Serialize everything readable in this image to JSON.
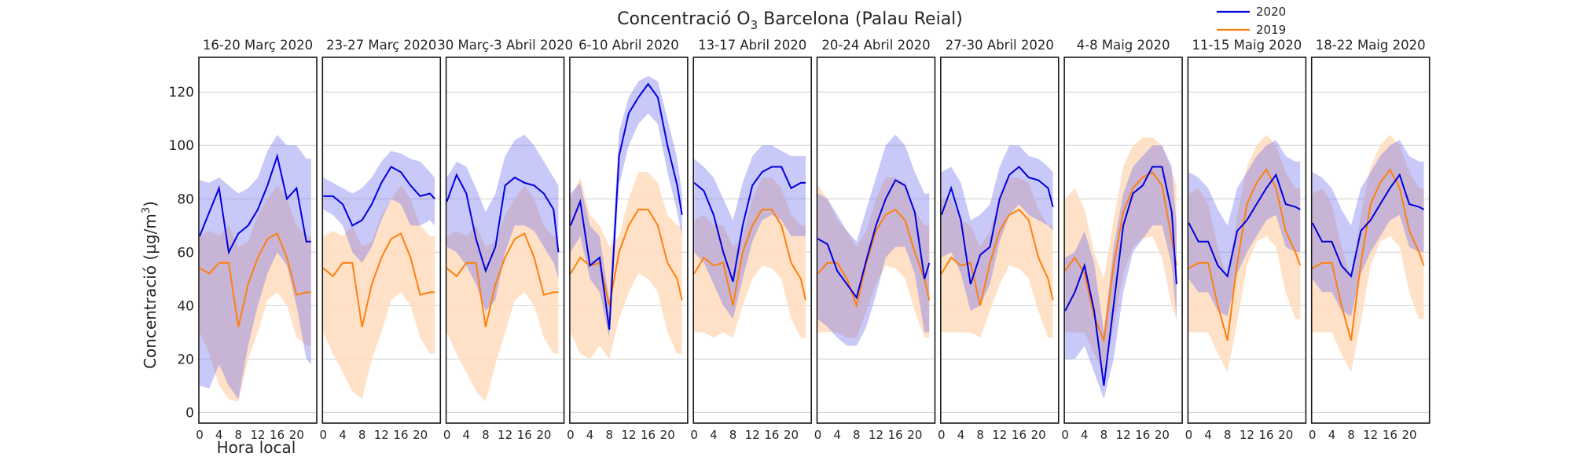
{
  "figure": {
    "title": "Concentració O",
    "title_sub": "3",
    "title_rest": " Barcelona (Palau Reial)",
    "ylabel": "Concentració (µg/m",
    "ylabel_sup": "3",
    "ylabel_end": ")",
    "xlabel": "Hora local"
  },
  "legend": {
    "items": [
      {
        "label": "2020",
        "color": "#0000dd"
      },
      {
        "label": "2019",
        "color": "#ff7f0e"
      }
    ],
    "position": "top-right"
  },
  "chart_data": {
    "type": "line",
    "ylim": [
      -4,
      133
    ],
    "xlim": [
      0,
      24
    ],
    "yticks": [
      0,
      20,
      40,
      60,
      80,
      100,
      120
    ],
    "xticks": [
      0,
      4,
      8,
      12,
      16,
      20
    ],
    "grid": "horizontal",
    "band_colors": {
      "2020": "#c3c5f5",
      "2019": "#ffdcbd",
      "overlap": "#c8a8c9"
    },
    "x": [
      0,
      2,
      4,
      6,
      8,
      10,
      12,
      14,
      16,
      18,
      20,
      22,
      23
    ],
    "panels": [
      {
        "title": "16-20 Març 2020",
        "series2020": [
          66,
          75,
          84,
          60,
          67,
          70,
          76,
          85,
          96,
          80,
          84,
          64,
          64
        ],
        "band2020_low": [
          10,
          9,
          18,
          10,
          5,
          25,
          40,
          52,
          60,
          55,
          40,
          20,
          18
        ],
        "band2020_high": [
          87,
          86,
          88,
          85,
          82,
          84,
          88,
          98,
          104,
          100,
          100,
          95,
          95
        ],
        "series2019": [
          54,
          52,
          56,
          56,
          32,
          48,
          58,
          65,
          67,
          58,
          44,
          45,
          45
        ],
        "band2019_low": [
          30,
          22,
          10,
          5,
          4,
          20,
          30,
          42,
          45,
          40,
          28,
          25,
          25
        ],
        "band2019_high": [
          66,
          68,
          66,
          70,
          62,
          64,
          74,
          80,
          85,
          80,
          70,
          66,
          66
        ]
      },
      {
        "title": "23-27 Març 2020",
        "series2020": [
          81,
          81,
          78,
          70,
          72,
          78,
          86,
          92,
          90,
          85,
          81,
          82,
          80
        ],
        "band2020_low": [
          76,
          74,
          70,
          60,
          56,
          62,
          72,
          80,
          78,
          70,
          70,
          72,
          70
        ],
        "band2020_high": [
          88,
          86,
          84,
          82,
          84,
          88,
          94,
          98,
          97,
          95,
          94,
          90,
          88
        ],
        "series2019": [
          54,
          51,
          56,
          56,
          32,
          48,
          58,
          65,
          67,
          58,
          44,
          45,
          45
        ],
        "band2019_low": [
          30,
          22,
          15,
          8,
          5,
          20,
          30,
          42,
          45,
          40,
          28,
          22,
          22
        ],
        "band2019_high": [
          66,
          68,
          66,
          70,
          62,
          64,
          74,
          80,
          85,
          80,
          70,
          66,
          66
        ]
      },
      {
        "title": "30 Març-3 Abril 2020",
        "series2020": [
          79,
          89,
          82,
          65,
          53,
          62,
          85,
          88,
          86,
          85,
          82,
          76,
          60
        ],
        "band2020_low": [
          62,
          60,
          55,
          48,
          38,
          42,
          60,
          70,
          70,
          68,
          62,
          56,
          50
        ],
        "band2020_high": [
          88,
          94,
          92,
          84,
          75,
          82,
          96,
          102,
          104,
          100,
          94,
          88,
          85
        ],
        "series2019": [
          54,
          51,
          56,
          56,
          32,
          48,
          58,
          65,
          67,
          58,
          44,
          45,
          45
        ],
        "band2019_low": [
          30,
          22,
          15,
          8,
          4,
          18,
          30,
          42,
          45,
          40,
          28,
          22,
          22
        ],
        "band2019_high": [
          66,
          68,
          66,
          70,
          62,
          64,
          74,
          80,
          85,
          80,
          70,
          66,
          66
        ]
      },
      {
        "title": "6-10 Abril 2020",
        "series2020": [
          70,
          79,
          55,
          58,
          31,
          96,
          112,
          118,
          123,
          118,
          100,
          85,
          74
        ],
        "band2020_low": [
          60,
          66,
          50,
          45,
          28,
          85,
          100,
          108,
          112,
          108,
          90,
          75,
          66
        ],
        "band2020_high": [
          82,
          86,
          70,
          66,
          42,
          105,
          118,
          124,
          126,
          124,
          110,
          95,
          82
        ],
        "series2019": [
          52,
          58,
          55,
          56,
          40,
          60,
          70,
          76,
          76,
          70,
          56,
          50,
          42
        ],
        "band2019_low": [
          30,
          22,
          20,
          25,
          20,
          35,
          45,
          52,
          50,
          45,
          30,
          22,
          22
        ],
        "band2019_high": [
          80,
          88,
          74,
          70,
          62,
          66,
          80,
          90,
          90,
          86,
          74,
          70,
          70
        ]
      },
      {
        "title": "13-17 Abril 2020",
        "series2020": [
          86,
          83,
          74,
          60,
          49,
          70,
          85,
          90,
          92,
          92,
          84,
          86,
          86
        ],
        "band2020_low": [
          60,
          56,
          48,
          40,
          35,
          50,
          64,
          72,
          74,
          72,
          66,
          66,
          66
        ],
        "band2020_high": [
          95,
          92,
          88,
          80,
          72,
          86,
          96,
          100,
          100,
          98,
          96,
          96,
          96
        ],
        "series2019": [
          52,
          58,
          55,
          56,
          40,
          60,
          70,
          76,
          76,
          70,
          56,
          50,
          42
        ],
        "band2019_low": [
          30,
          30,
          28,
          30,
          28,
          40,
          50,
          55,
          54,
          50,
          35,
          28,
          28
        ],
        "band2019_high": [
          72,
          74,
          70,
          70,
          62,
          66,
          80,
          88,
          88,
          84,
          74,
          70,
          70
        ]
      },
      {
        "title": "20-24 Abril 2020",
        "series2020": [
          65,
          63,
          53,
          48,
          43,
          57,
          70,
          80,
          87,
          85,
          75,
          50,
          56
        ],
        "band2020_low": [
          35,
          32,
          28,
          25,
          25,
          32,
          44,
          58,
          62,
          62,
          52,
          30,
          30
        ],
        "band2020_high": [
          82,
          80,
          74,
          68,
          64,
          76,
          88,
          100,
          104,
          100,
          90,
          82,
          82
        ],
        "series2019": [
          52,
          56,
          56,
          50,
          40,
          56,
          68,
          74,
          76,
          72,
          60,
          50,
          42
        ],
        "band2019_low": [
          30,
          30,
          30,
          28,
          28,
          38,
          48,
          55,
          54,
          50,
          38,
          28,
          28
        ],
        "band2019_high": [
          85,
          80,
          72,
          68,
          62,
          68,
          80,
          88,
          88,
          86,
          76,
          70,
          70
        ]
      },
      {
        "title": "27-30 Abril 2020",
        "series2020": [
          74,
          84,
          72,
          48,
          59,
          62,
          80,
          89,
          92,
          88,
          87,
          84,
          77
        ],
        "band2020_low": [
          58,
          60,
          52,
          38,
          40,
          48,
          64,
          74,
          78,
          74,
          72,
          70,
          68
        ],
        "band2020_high": [
          90,
          92,
          86,
          72,
          74,
          78,
          92,
          100,
          100,
          96,
          95,
          92,
          90
        ],
        "series2019": [
          52,
          58,
          55,
          56,
          40,
          56,
          68,
          74,
          76,
          72,
          58,
          50,
          42
        ],
        "band2019_low": [
          30,
          30,
          30,
          30,
          28,
          38,
          48,
          55,
          54,
          50,
          38,
          28,
          28
        ],
        "band2019_high": [
          80,
          80,
          72,
          70,
          62,
          68,
          80,
          88,
          88,
          86,
          76,
          70,
          70
        ]
      },
      {
        "title": "4-8 Maig 2020",
        "series2020": [
          38,
          45,
          55,
          38,
          10,
          40,
          70,
          82,
          85,
          92,
          92,
          75,
          48
        ],
        "band2020_low": [
          20,
          20,
          25,
          15,
          5,
          20,
          45,
          60,
          65,
          70,
          70,
          55,
          35
        ],
        "band2020_high": [
          58,
          60,
          68,
          56,
          30,
          62,
          82,
          92,
          96,
          100,
          100,
          92,
          70
        ],
        "series2019": [
          53,
          58,
          52,
          36,
          27,
          55,
          75,
          84,
          88,
          90,
          85,
          65,
          55
        ],
        "band2019_low": [
          30,
          30,
          30,
          22,
          15,
          32,
          52,
          62,
          65,
          66,
          58,
          40,
          35
        ],
        "band2019_high": [
          80,
          84,
          76,
          60,
          50,
          72,
          92,
          100,
          103,
          103,
          100,
          90,
          85
        ]
      },
      {
        "title": "11-15 Maig 2020",
        "series2020": [
          71,
          64,
          64,
          55,
          51,
          68,
          72,
          78,
          84,
          89,
          78,
          77,
          76
        ],
        "band2020_low": [
          50,
          45,
          45,
          38,
          36,
          52,
          60,
          66,
          72,
          74,
          62,
          60,
          60
        ],
        "band2020_high": [
          90,
          88,
          84,
          76,
          70,
          84,
          90,
          96,
          100,
          102,
          96,
          94,
          94
        ],
        "series2019": [
          54,
          56,
          56,
          40,
          27,
          56,
          78,
          86,
          91,
          84,
          68,
          60,
          55
        ],
        "band2019_low": [
          30,
          30,
          30,
          22,
          15,
          34,
          55,
          64,
          66,
          62,
          45,
          35,
          35
        ],
        "band2019_high": [
          82,
          84,
          78,
          62,
          50,
          74,
          92,
          100,
          104,
          100,
          90,
          84,
          84
        ]
      },
      {
        "title": "18-22 Maig 2020",
        "series2020": [
          71,
          64,
          64,
          55,
          51,
          68,
          72,
          78,
          84,
          89,
          78,
          77,
          76
        ],
        "band2020_low": [
          50,
          45,
          45,
          38,
          36,
          52,
          60,
          66,
          72,
          74,
          62,
          60,
          60
        ],
        "band2020_high": [
          90,
          88,
          84,
          76,
          70,
          84,
          90,
          96,
          100,
          102,
          96,
          94,
          94
        ],
        "series2019": [
          54,
          56,
          56,
          40,
          27,
          56,
          78,
          86,
          91,
          84,
          68,
          60,
          55
        ],
        "band2019_low": [
          30,
          30,
          30,
          22,
          15,
          34,
          55,
          64,
          66,
          62,
          45,
          35,
          35
        ],
        "band2019_high": [
          82,
          84,
          78,
          62,
          50,
          74,
          92,
          100,
          104,
          100,
          90,
          84,
          84
        ]
      }
    ]
  }
}
